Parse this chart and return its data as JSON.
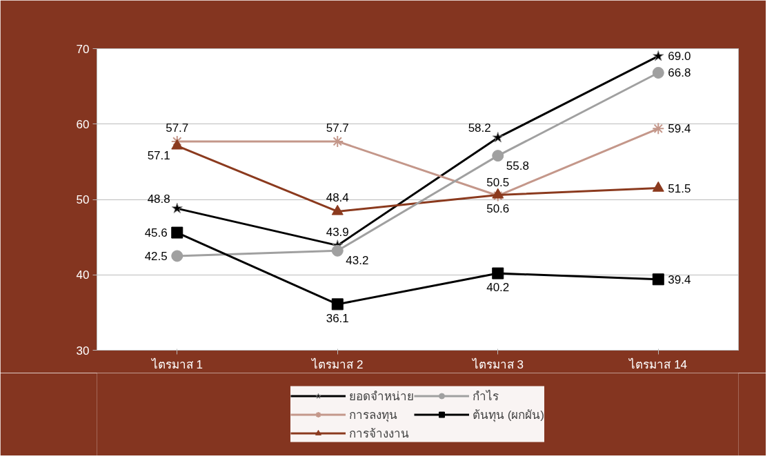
{
  "chart_data": {
    "type": "line",
    "categories": [
      "ไตรมาส 1",
      "ไตรมาส 2",
      "ไตรมาส 3",
      "ไตรมาส 14"
    ],
    "series": [
      {
        "name": "ยอดจำหน่าย",
        "color": "#000000",
        "marker": "star",
        "values": [
          48.8,
          43.9,
          58.2,
          69.0
        ],
        "value_labels": [
          "48.8",
          "43.9",
          "58.2",
          "69.0"
        ]
      },
      {
        "name": "การลงทุน",
        "color": "#c4978a",
        "marker": "cross",
        "values": [
          57.7,
          57.7,
          50.5,
          59.4
        ],
        "value_labels": [
          "57.7",
          "57.7",
          "50.5",
          "59.4"
        ]
      },
      {
        "name": "การจ้างงาน",
        "color": "#8b3a1e",
        "marker": "triangle",
        "values": [
          57.1,
          48.4,
          50.6,
          51.5
        ],
        "value_labels": [
          "57.1",
          "48.4",
          "50.6",
          "51.5"
        ]
      },
      {
        "name": "กำไร",
        "color": "#a0a0a0",
        "marker": "circle",
        "values": [
          42.5,
          43.2,
          55.8,
          66.8
        ],
        "value_labels": [
          "42.5",
          "43.2",
          "55.8",
          "66.8"
        ]
      },
      {
        "name": "ต้นทุน (ผกผัน)",
        "color": "#000000",
        "marker": "square",
        "values": [
          45.6,
          36.1,
          40.2,
          39.4
        ],
        "value_labels": [
          "45.6",
          "36.1",
          "40.2",
          "39.4"
        ]
      }
    ],
    "ylim": [
      30,
      70
    ],
    "yticks": [
      30,
      40,
      50,
      60,
      70
    ],
    "grid": "y",
    "legend": "bottom",
    "line_style": "solid"
  }
}
